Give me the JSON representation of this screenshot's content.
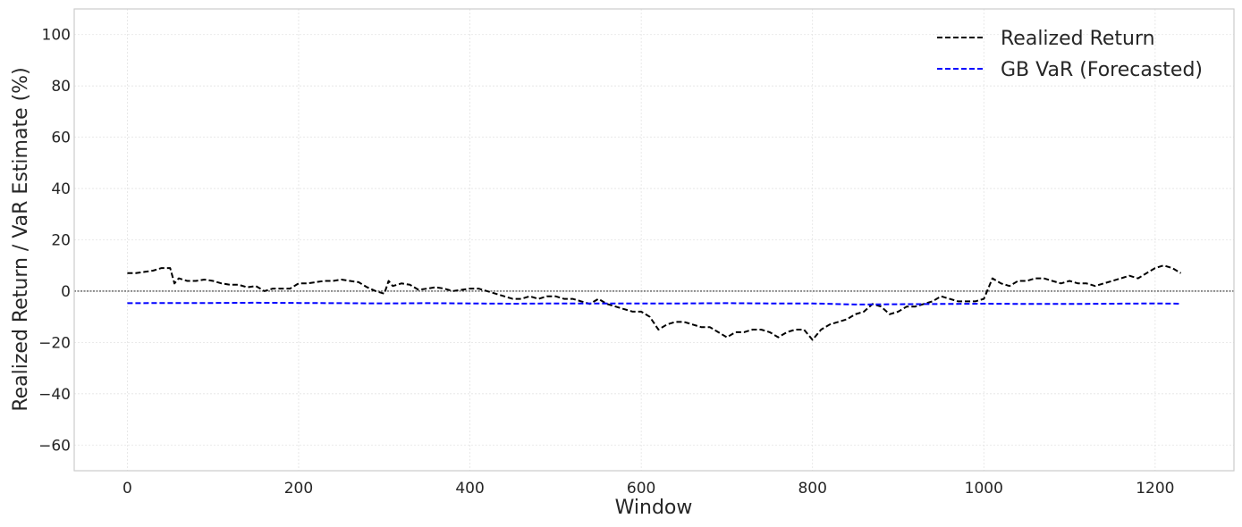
{
  "chart_data": {
    "type": "line",
    "title": "",
    "xlabel": "Window",
    "ylabel": "Realized Return / VaR Estimate (%)",
    "xlim": [
      -62,
      1292
    ],
    "ylim": [
      -70,
      110
    ],
    "xticks": [
      0,
      200,
      400,
      600,
      800,
      1000,
      1200
    ],
    "yticks": [
      -60,
      -40,
      -20,
      0,
      20,
      40,
      60,
      80,
      100
    ],
    "xtick_labels": [
      "0",
      "200",
      "400",
      "600",
      "800",
      "1000",
      "1200"
    ],
    "ytick_labels": [
      "−60",
      "−40",
      "−20",
      "0",
      "20",
      "40",
      "60",
      "80",
      "100"
    ],
    "grid": true,
    "zero_line": true,
    "legend_position": "top-right",
    "series": [
      {
        "name": "Realized Return",
        "color": "#000000",
        "style": "dashed",
        "x": [
          0,
          10,
          20,
          30,
          40,
          50,
          55,
          60,
          70,
          80,
          90,
          100,
          110,
          120,
          130,
          140,
          150,
          160,
          170,
          180,
          190,
          200,
          210,
          220,
          230,
          240,
          250,
          260,
          270,
          280,
          290,
          300,
          305,
          310,
          320,
          330,
          340,
          350,
          360,
          370,
          380,
          390,
          400,
          410,
          420,
          430,
          440,
          450,
          460,
          470,
          480,
          490,
          500,
          510,
          520,
          530,
          540,
          550,
          560,
          570,
          580,
          590,
          600,
          610,
          620,
          630,
          640,
          650,
          660,
          670,
          680,
          690,
          700,
          710,
          720,
          730,
          740,
          750,
          760,
          770,
          780,
          790,
          800,
          810,
          820,
          830,
          840,
          850,
          860,
          870,
          880,
          890,
          900,
          910,
          920,
          930,
          940,
          950,
          960,
          970,
          980,
          990,
          1000,
          1010,
          1020,
          1030,
          1040,
          1050,
          1060,
          1070,
          1080,
          1090,
          1100,
          1110,
          1120,
          1130,
          1140,
          1150,
          1160,
          1170,
          1180,
          1190,
          1200,
          1210,
          1220,
          1230
        ],
        "y": [
          7,
          7,
          7.5,
          8,
          9,
          9,
          3,
          5,
          4,
          4,
          4.5,
          4,
          3,
          2.5,
          2.5,
          1.5,
          2,
          0,
          1,
          1,
          1,
          3,
          3,
          3.5,
          4,
          4,
          4.5,
          4,
          3.5,
          1.5,
          0,
          -1,
          4,
          2,
          3,
          2.5,
          0.5,
          1,
          1.5,
          1,
          0,
          0.5,
          1,
          1,
          0,
          -1,
          -2,
          -3,
          -3,
          -2,
          -3,
          -2,
          -2,
          -3,
          -3,
          -4,
          -5,
          -3,
          -5,
          -6,
          -7,
          -8,
          -8,
          -10,
          -15,
          -13,
          -12,
          -12,
          -13,
          -14,
          -14,
          -16,
          -18,
          -16,
          -16,
          -15,
          -15,
          -16,
          -18,
          -16,
          -15,
          -15,
          -19,
          -15,
          -13,
          -12,
          -11,
          -9,
          -8,
          -5,
          -6,
          -9,
          -8,
          -6,
          -6,
          -5,
          -4,
          -2,
          -3,
          -4,
          -4,
          -4,
          -3,
          5,
          3,
          2,
          4,
          4,
          5,
          5,
          4,
          3,
          4,
          3,
          3,
          2,
          3,
          4,
          5,
          6,
          5,
          7,
          9,
          10,
          9,
          7
        ]
      },
      {
        "name": "GB VaR (Forecasted)",
        "color": "#0000ff",
        "style": "dashed",
        "x": [
          0,
          50,
          100,
          150,
          200,
          250,
          300,
          350,
          400,
          450,
          500,
          550,
          600,
          650,
          700,
          750,
          800,
          850,
          900,
          950,
          1000,
          1050,
          1100,
          1150,
          1200,
          1230
        ],
        "y": [
          -4.7,
          -4.6,
          -4.6,
          -4.5,
          -4.6,
          -4.7,
          -4.8,
          -4.7,
          -4.8,
          -4.9,
          -4.8,
          -4.8,
          -4.8,
          -4.8,
          -4.7,
          -4.8,
          -4.8,
          -5.2,
          -5.1,
          -5.0,
          -4.9,
          -5.0,
          -5.0,
          -4.9,
          -4.8,
          -4.9
        ]
      }
    ]
  }
}
